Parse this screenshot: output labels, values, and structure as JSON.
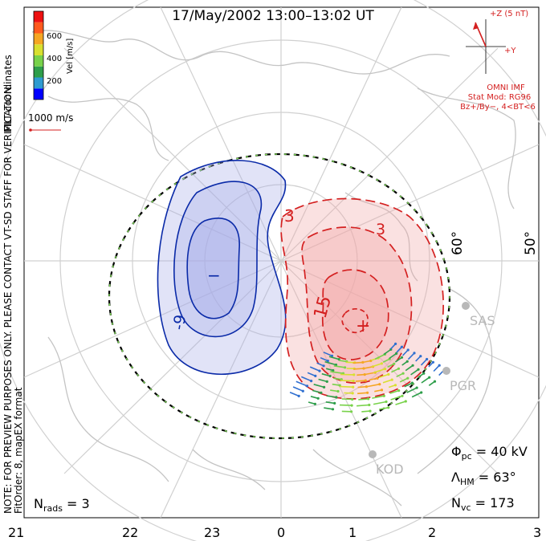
{
  "title": "17/May/2002  13:00–13:02  UT",
  "left_notes": {
    "mlt": "MLT coordinates",
    "note": "NOTE: FOR PREVIEW PURPOSES ONLY. PLEASE CONTACT VT-SD STAFF FOR VERIFICATION.",
    "fit": "FitOrder: 8, mapEX format"
  },
  "colorbar": {
    "label": "Vel [m/s]",
    "ticks": [
      "600",
      "400",
      "200"
    ],
    "colors": [
      "#0000ff",
      "#2f9bd0",
      "#2e9e4a",
      "#78d24a",
      "#d8e030",
      "#f5a623",
      "#ff5a1e",
      "#ee1111"
    ]
  },
  "ref_vector": "1000 m/s",
  "imf": {
    "z_label": "+Z (5 nT)",
    "y_label": "+Y",
    "source": "OMNI IMF",
    "model": "Stat Mod: RG96",
    "condition": "Bz+/By−, 4<BT<6"
  },
  "latitude_labels": [
    "60°",
    "50°"
  ],
  "contour_labels": {
    "neg_outer": "-9",
    "neg_center": "−",
    "pos_outer": "3",
    "pos_mid": "3",
    "pos_inner": "15",
    "pos_center": "+"
  },
  "stations": [
    "SAS",
    "PGR",
    "KOD"
  ],
  "stats": {
    "phi_symbol": "Φ",
    "phi_sub": "pc",
    "phi_value": " = 40 kV",
    "lambda_symbol": "Λ",
    "lambda_sub": "HM",
    "lambda_value": " = 63°",
    "nvc_symbol": "N",
    "nvc_sub": "vc",
    "nvc_value": " = 173",
    "nrads_symbol": "N",
    "nrads_sub": "rads",
    "nrads_value": " = 3"
  },
  "mlt_axis": [
    "21",
    "22",
    "23",
    "0",
    "1",
    "2",
    "3"
  ],
  "colors": {
    "negative": "#0a2aa8",
    "positive": "#d42020",
    "neg_fill": "#a9aee8",
    "pos_fill": "#f2a9a9",
    "hmb": "#7ed957"
  }
}
